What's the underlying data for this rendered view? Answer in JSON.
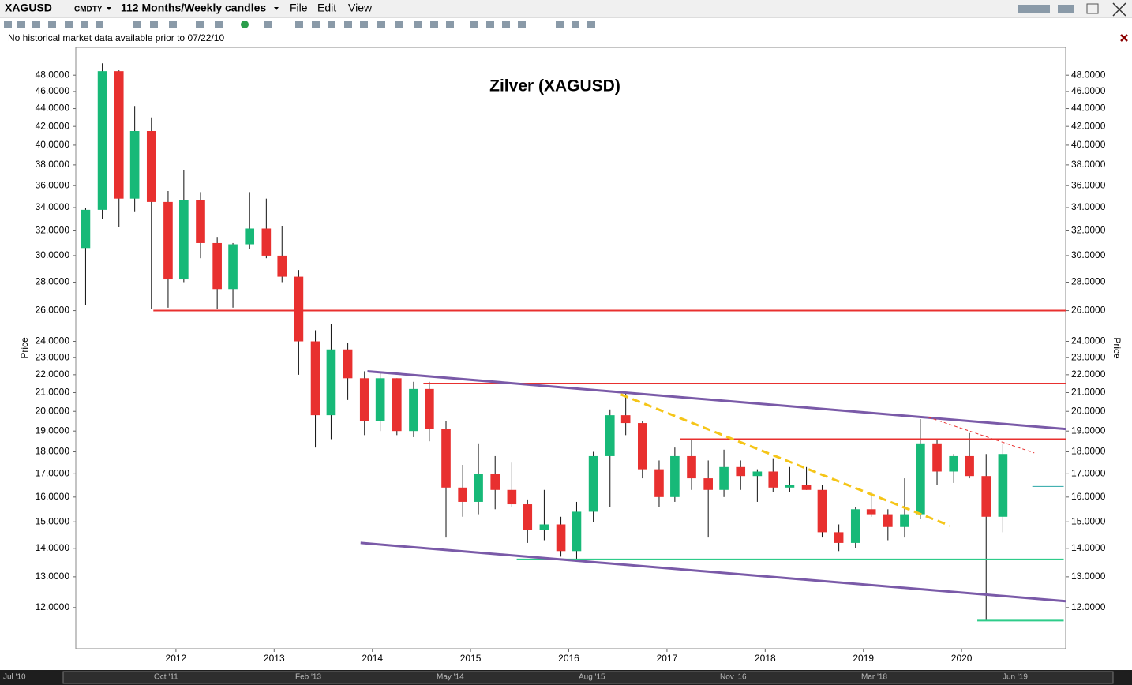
{
  "toolbar": {
    "symbol": "XAGUSD",
    "asset_class": "CMDTY",
    "period": "112 Months/Weekly candles",
    "menus": [
      "File",
      "Edit",
      "View"
    ]
  },
  "notice": "No historical market data available prior to 07/22/10",
  "navigator_labels": [
    "Jul '10",
    "Oct '11",
    "Feb '13",
    "May '14",
    "Aug '15",
    "Nov '16",
    "Mar '18",
    "Jun '19"
  ],
  "chart_data": {
    "type": "candlestick",
    "title": "Zilver (XAGUSD)",
    "y_label": "Price",
    "log_scale": true,
    "up_color": "#17b978",
    "down_color": "#e8302f",
    "xlim": [
      2010.98,
      2021.06
    ],
    "xticks": [
      2012,
      2013,
      2014,
      2015,
      2016,
      2017,
      2018,
      2019,
      2020
    ],
    "ylim": [
      10.78,
      51.6
    ],
    "yticks": [
      {
        "value": 12,
        "label": "12.0000"
      },
      {
        "value": 13,
        "label": "13.0000"
      },
      {
        "value": 14,
        "label": "14.0000"
      },
      {
        "value": 15,
        "label": "15.0000"
      },
      {
        "value": 16,
        "label": "16.0000"
      },
      {
        "value": 17,
        "label": "17.0000"
      },
      {
        "value": 18,
        "label": "18.0000"
      },
      {
        "value": 19,
        "label": "19.0000"
      },
      {
        "value": 20,
        "label": "20.0000"
      },
      {
        "value": 21,
        "label": "21.0000"
      },
      {
        "value": 22,
        "label": "22.0000"
      },
      {
        "value": 23,
        "label": "23.0000"
      },
      {
        "value": 24,
        "label": "24.0000"
      },
      {
        "value": 26,
        "label": "26.0000"
      },
      {
        "value": 28,
        "label": "28.0000"
      },
      {
        "value": 30,
        "label": "30.0000"
      },
      {
        "value": 32,
        "label": "32.0000"
      },
      {
        "value": 34,
        "label": "34.0000"
      },
      {
        "value": 36,
        "label": "36.0000"
      },
      {
        "value": 38,
        "label": "38.0000"
      },
      {
        "value": 40,
        "label": "40.0000"
      },
      {
        "value": 42,
        "label": "42.0000"
      },
      {
        "value": 44,
        "label": "44.0000"
      },
      {
        "value": 46,
        "label": "46.0000"
      },
      {
        "value": 48,
        "label": "48.0000"
      }
    ],
    "x": [
      2011.08,
      2011.25,
      2011.42,
      2011.58,
      2011.75,
      2011.92,
      2012.08,
      2012.25,
      2012.42,
      2012.58,
      2012.75,
      2012.92,
      2013.08,
      2013.25,
      2013.42,
      2013.58,
      2013.75,
      2013.92,
      2014.08,
      2014.25,
      2014.42,
      2014.58,
      2014.75,
      2014.92,
      2015.08,
      2015.25,
      2015.42,
      2015.58,
      2015.75,
      2015.92,
      2016.08,
      2016.25,
      2016.42,
      2016.58,
      2016.75,
      2016.92,
      2017.08,
      2017.25,
      2017.42,
      2017.58,
      2017.75,
      2017.92,
      2018.08,
      2018.25,
      2018.42,
      2018.58,
      2018.75,
      2018.92,
      2019.08,
      2019.25,
      2019.42,
      2019.58,
      2019.75,
      2019.92,
      2020.08,
      2020.25,
      2020.42
    ],
    "open": [
      30.6,
      33.8,
      48.5,
      34.8,
      41.5,
      34.5,
      28.2,
      34.7,
      31,
      27.5,
      30.9,
      32.2,
      30,
      28.4,
      24,
      19.8,
      23.5,
      21.8,
      19.5,
      21.8,
      19,
      21.2,
      19.1,
      16.4,
      15.8,
      17,
      16.3,
      15.7,
      14.7,
      14.9,
      13.9,
      15.4,
      17.8,
      19.8,
      19.4,
      17.2,
      16,
      17.8,
      16.8,
      16.3,
      17.3,
      16.9,
      17.1,
      16.4,
      16.5,
      16.3,
      14.6,
      14.2,
      15.5,
      15.3,
      14.8,
      15.3,
      18.4,
      17.1,
      17.8,
      16.9,
      15.2
    ],
    "high": [
      34,
      49.5,
      48.6,
      44.3,
      43,
      35.5,
      37.5,
      35.4,
      31.5,
      31,
      35.4,
      34.8,
      32.4,
      28.9,
      24.7,
      25.1,
      23.9,
      22.2,
      22.2,
      21.8,
      21.6,
      21.6,
      19.5,
      17.4,
      18.4,
      17.8,
      17.5,
      15.9,
      16.3,
      15.2,
      15.8,
      18,
      20.1,
      21,
      19.5,
      17.6,
      18.2,
      18.6,
      17.6,
      18.1,
      17.6,
      17.2,
      17.7,
      17.3,
      17.3,
      16.5,
      14.9,
      15.6,
      16.2,
      15.5,
      16.8,
      19.6,
      18.6,
      17.9,
      18.9,
      17.9,
      18.4
    ],
    "low": [
      26.4,
      33,
      32.3,
      33.6,
      26.1,
      26.2,
      28,
      29.8,
      26.1,
      26.2,
      30.5,
      29.8,
      28,
      22,
      18.2,
      18.6,
      20.6,
      18.8,
      19,
      18.8,
      18.7,
      18.5,
      14.4,
      15.2,
      15.3,
      15.5,
      15.6,
      14.2,
      14.3,
      13.7,
      13.6,
      15,
      15.6,
      18.8,
      16.8,
      15.6,
      15.8,
      16.3,
      14.4,
      16,
      16.3,
      15.8,
      16.2,
      16.2,
      16.3,
      14.4,
      13.9,
      14,
      15.2,
      14.3,
      14.4,
      15.1,
      16.5,
      16.6,
      16.8,
      11.6,
      14.6
    ],
    "close": [
      33.8,
      48.5,
      34.8,
      41.5,
      34.5,
      28.2,
      34.7,
      31,
      27.5,
      30.9,
      32.2,
      30,
      28.4,
      24,
      19.8,
      23.5,
      21.8,
      19.5,
      21.8,
      19,
      21.2,
      19.1,
      16.4,
      15.8,
      17,
      16.3,
      15.7,
      14.7,
      14.9,
      13.9,
      15.4,
      17.8,
      19.8,
      19.4,
      17.2,
      16,
      17.8,
      16.8,
      16.3,
      17.3,
      16.9,
      17.1,
      16.4,
      16.5,
      16.3,
      14.6,
      14.2,
      15.5,
      15.3,
      14.8,
      15.3,
      18.4,
      17.1,
      17.8,
      16.9,
      15.2,
      17.9
    ],
    "lines": [
      {
        "x": [
          2011.77,
          2021.06
        ],
        "y": [
          26,
          26
        ],
        "color": "#e8302f",
        "width": 2,
        "dashed": false
      },
      {
        "x": [
          2014.52,
          2021.06
        ],
        "y": [
          21.5,
          21.5
        ],
        "color": "#e8302f",
        "width": 2,
        "dashed": false
      },
      {
        "x": [
          2017.13,
          2021.06
        ],
        "y": [
          18.6,
          18.6
        ],
        "color": "#e8302f",
        "width": 2,
        "dashed": false
      },
      {
        "x": [
          2015.47,
          2021.04
        ],
        "y": [
          13.6,
          13.6
        ],
        "color": "#2ecc8a",
        "width": 2,
        "dashed": false
      },
      {
        "x": [
          2020.72,
          2021.04
        ],
        "y": [
          16.45,
          16.45
        ],
        "color": "#2aa6a6",
        "width": 1,
        "dashed": false
      },
      {
        "x": [
          2020.16,
          2021.04
        ],
        "y": [
          11.6,
          11.6
        ],
        "color": "#2ecc8a",
        "width": 2,
        "dashed": false
      },
      {
        "x": [
          2013.95,
          2021.06
        ],
        "y": [
          22.2,
          19.1
        ],
        "color": "#7a5aa8",
        "width": 3,
        "dashed": false
      },
      {
        "x": [
          2013.88,
          2021.06
        ],
        "y": [
          14.2,
          12.2
        ],
        "color": "#7a5aa8",
        "width": 3,
        "dashed": false
      },
      {
        "x": [
          2016.53,
          2019.88
        ],
        "y": [
          20.9,
          14.85
        ],
        "color": "#f5c518",
        "width": 3,
        "dashed": true
      },
      {
        "x": [
          2019.66,
          2020.74
        ],
        "y": [
          19.7,
          17.95
        ],
        "color": "#e8302f",
        "width": 1,
        "dashed": true
      }
    ]
  }
}
